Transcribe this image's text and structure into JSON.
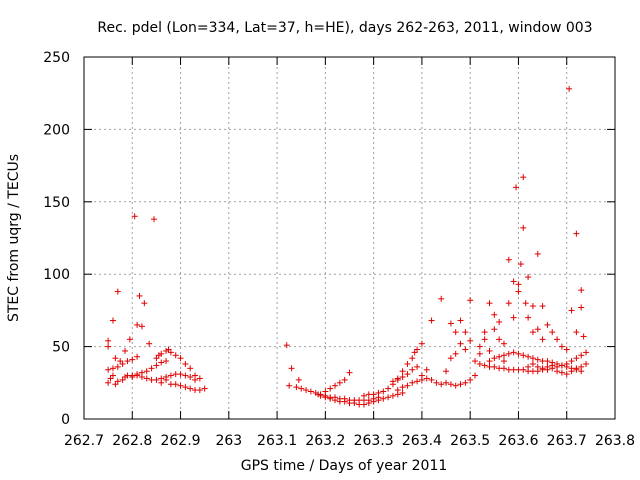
{
  "chart_data": {
    "type": "scatter",
    "title": "Rec. pdel (Lon=334, Lat=37, h=HE), days 262-263, 2011, window 003",
    "xlabel": "GPS time / Days of year 2011",
    "ylabel": "STEC from uqrg / TECUs",
    "xlim": [
      262.7,
      263.8
    ],
    "ylim": [
      0,
      250
    ],
    "xticks": [
      262.7,
      262.8,
      262.9,
      263,
      263.1,
      263.2,
      263.3,
      263.4,
      263.5,
      263.6,
      263.7,
      263.8
    ],
    "xtick_labels": [
      "262.7",
      "262.8",
      "262.9",
      "263",
      "263.1",
      "263.2",
      "263.3",
      "263.4",
      "263.5",
      "263.6",
      "263.7",
      "263.8"
    ],
    "yticks": [
      0,
      50,
      100,
      150,
      200,
      250
    ],
    "ytick_labels": [
      "0",
      "50",
      "100",
      "150",
      "200",
      "250"
    ],
    "grid": true,
    "marker": "plus",
    "marker_color": "#e00000",
    "points": [
      [
        262.75,
        25
      ],
      [
        262.755,
        28
      ],
      [
        262.76,
        30
      ],
      [
        262.765,
        24
      ],
      [
        262.77,
        26
      ],
      [
        262.78,
        27
      ],
      [
        262.785,
        29
      ],
      [
        262.79,
        30
      ],
      [
        262.75,
        34
      ],
      [
        262.76,
        35
      ],
      [
        262.77,
        36
      ],
      [
        262.78,
        38
      ],
      [
        262.79,
        40
      ],
      [
        262.8,
        41
      ],
      [
        262.81,
        43
      ],
      [
        262.75,
        50
      ],
      [
        262.75,
        54
      ],
      [
        262.76,
        68
      ],
      [
        262.765,
        42
      ],
      [
        262.77,
        88
      ],
      [
        262.775,
        40
      ],
      [
        262.785,
        47
      ],
      [
        262.795,
        55
      ],
      [
        262.805,
        140
      ],
      [
        262.81,
        65
      ],
      [
        262.815,
        85
      ],
      [
        262.82,
        64
      ],
      [
        262.825,
        80
      ],
      [
        262.835,
        52
      ],
      [
        262.845,
        138
      ],
      [
        262.85,
        42
      ],
      [
        262.855,
        44
      ],
      [
        262.86,
        45
      ],
      [
        262.87,
        47
      ],
      [
        262.875,
        48
      ],
      [
        262.88,
        46
      ],
      [
        262.89,
        44
      ],
      [
        262.9,
        42
      ],
      [
        262.91,
        38
      ],
      [
        262.92,
        35
      ],
      [
        262.93,
        30
      ],
      [
        262.94,
        28
      ],
      [
        262.8,
        30
      ],
      [
        262.81,
        31
      ],
      [
        262.82,
        32
      ],
      [
        262.83,
        33
      ],
      [
        262.84,
        35
      ],
      [
        262.85,
        37
      ],
      [
        262.86,
        39
      ],
      [
        262.87,
        40
      ],
      [
        262.8,
        29
      ],
      [
        262.81,
        30
      ],
      [
        262.82,
        29
      ],
      [
        262.83,
        28
      ],
      [
        262.84,
        27
      ],
      [
        262.85,
        27
      ],
      [
        262.86,
        28
      ],
      [
        262.87,
        29
      ],
      [
        262.88,
        30
      ],
      [
        262.89,
        31
      ],
      [
        262.9,
        31
      ],
      [
        262.91,
        30
      ],
      [
        262.92,
        29
      ],
      [
        262.93,
        27
      ],
      [
        262.86,
        25
      ],
      [
        262.87,
        27
      ],
      [
        262.88,
        24
      ],
      [
        262.89,
        24
      ],
      [
        262.9,
        23
      ],
      [
        262.91,
        22
      ],
      [
        262.92,
        21
      ],
      [
        262.93,
        20
      ],
      [
        262.94,
        20
      ],
      [
        262.95,
        21
      ],
      [
        263.12,
        51
      ],
      [
        263.125,
        23
      ],
      [
        263.13,
        35
      ],
      [
        263.14,
        22
      ],
      [
        263.145,
        27
      ],
      [
        263.15,
        21
      ],
      [
        263.16,
        20
      ],
      [
        263.17,
        19
      ],
      [
        263.18,
        18
      ],
      [
        263.185,
        17
      ],
      [
        263.19,
        16
      ],
      [
        263.2,
        15
      ],
      [
        263.21,
        14
      ],
      [
        263.22,
        13
      ],
      [
        263.23,
        12
      ],
      [
        263.24,
        12
      ],
      [
        263.25,
        11
      ],
      [
        263.26,
        11
      ],
      [
        263.27,
        10
      ],
      [
        263.28,
        10
      ],
      [
        263.29,
        11
      ],
      [
        263.3,
        12
      ],
      [
        263.31,
        13
      ],
      [
        263.32,
        14
      ],
      [
        263.33,
        15
      ],
      [
        263.34,
        16
      ],
      [
        263.35,
        17
      ],
      [
        263.36,
        18
      ],
      [
        263.2,
        19
      ],
      [
        263.21,
        21
      ],
      [
        263.22,
        23
      ],
      [
        263.23,
        25
      ],
      [
        263.24,
        27
      ],
      [
        263.25,
        32
      ],
      [
        263.19,
        17
      ],
      [
        263.2,
        16
      ],
      [
        263.21,
        15
      ],
      [
        263.22,
        15
      ],
      [
        263.23,
        14
      ],
      [
        263.24,
        14
      ],
      [
        263.25,
        13
      ],
      [
        263.26,
        13
      ],
      [
        263.27,
        13
      ],
      [
        263.28,
        13
      ],
      [
        263.29,
        13
      ],
      [
        263.3,
        14
      ],
      [
        263.31,
        15
      ],
      [
        263.28,
        16
      ],
      [
        263.29,
        17
      ],
      [
        263.3,
        17
      ],
      [
        263.31,
        18
      ],
      [
        263.32,
        19
      ],
      [
        263.33,
        21
      ],
      [
        263.34,
        24
      ],
      [
        263.35,
        28
      ],
      [
        263.36,
        33
      ],
      [
        263.37,
        38
      ],
      [
        263.38,
        42
      ],
      [
        263.385,
        46
      ],
      [
        263.39,
        48
      ],
      [
        263.4,
        52
      ],
      [
        263.34,
        26
      ],
      [
        263.35,
        27
      ],
      [
        263.36,
        29
      ],
      [
        263.37,
        31
      ],
      [
        263.38,
        34
      ],
      [
        263.39,
        36
      ],
      [
        263.35,
        20
      ],
      [
        263.36,
        22
      ],
      [
        263.37,
        23
      ],
      [
        263.38,
        25
      ],
      [
        263.39,
        26
      ],
      [
        263.4,
        27
      ],
      [
        263.41,
        28
      ],
      [
        263.42,
        27
      ],
      [
        263.43,
        25
      ],
      [
        263.44,
        24
      ],
      [
        263.45,
        25
      ],
      [
        263.46,
        24
      ],
      [
        263.47,
        23
      ],
      [
        263.48,
        24
      ],
      [
        263.49,
        25
      ],
      [
        263.5,
        27
      ],
      [
        263.51,
        30
      ],
      [
        263.4,
        30
      ],
      [
        263.41,
        34
      ],
      [
        263.42,
        68
      ],
      [
        263.44,
        83
      ],
      [
        263.45,
        33
      ],
      [
        263.46,
        42
      ],
      [
        263.46,
        66
      ],
      [
        263.47,
        45
      ],
      [
        263.47,
        60
      ],
      [
        263.48,
        52
      ],
      [
        263.48,
        68
      ],
      [
        263.49,
        60
      ],
      [
        263.49,
        48
      ],
      [
        263.5,
        82
      ],
      [
        263.5,
        54
      ],
      [
        263.51,
        40
      ],
      [
        263.52,
        45
      ],
      [
        263.52,
        50
      ],
      [
        263.53,
        55
      ],
      [
        263.53,
        60
      ],
      [
        263.54,
        80
      ],
      [
        263.54,
        47
      ],
      [
        263.55,
        62
      ],
      [
        263.55,
        72
      ],
      [
        263.56,
        67
      ],
      [
        263.56,
        55
      ],
      [
        263.57,
        52
      ],
      [
        263.57,
        40
      ],
      [
        263.58,
        110
      ],
      [
        263.58,
        80
      ],
      [
        263.59,
        70
      ],
      [
        263.59,
        95
      ],
      [
        263.595,
        160
      ],
      [
        263.6,
        93
      ],
      [
        263.6,
        88
      ],
      [
        263.605,
        107
      ],
      [
        263.61,
        167
      ],
      [
        263.61,
        132
      ],
      [
        263.615,
        80
      ],
      [
        263.62,
        98
      ],
      [
        263.62,
        70
      ],
      [
        263.63,
        78
      ],
      [
        263.63,
        60
      ],
      [
        263.64,
        114
      ],
      [
        263.64,
        62
      ],
      [
        263.65,
        78
      ],
      [
        263.65,
        55
      ],
      [
        263.66,
        65
      ],
      [
        263.67,
        60
      ],
      [
        263.68,
        55
      ],
      [
        263.69,
        50
      ],
      [
        263.7,
        48
      ],
      [
        263.705,
        228
      ],
      [
        263.71,
        75
      ],
      [
        263.72,
        128
      ],
      [
        263.72,
        60
      ],
      [
        263.73,
        89
      ],
      [
        263.73,
        77
      ],
      [
        263.735,
        57
      ],
      [
        263.54,
        40
      ],
      [
        263.55,
        42
      ],
      [
        263.56,
        43
      ],
      [
        263.57,
        44
      ],
      [
        263.58,
        45
      ],
      [
        263.59,
        46
      ],
      [
        263.6,
        45
      ],
      [
        263.61,
        44
      ],
      [
        263.62,
        43
      ],
      [
        263.63,
        42
      ],
      [
        263.64,
        41
      ],
      [
        263.65,
        40
      ],
      [
        263.66,
        40
      ],
      [
        263.67,
        39
      ],
      [
        263.68,
        38
      ],
      [
        263.69,
        37
      ],
      [
        263.7,
        36
      ],
      [
        263.71,
        35
      ],
      [
        263.72,
        34
      ],
      [
        263.73,
        33
      ],
      [
        263.52,
        38
      ],
      [
        263.53,
        37
      ],
      [
        263.54,
        36
      ],
      [
        263.55,
        36
      ],
      [
        263.56,
        35
      ],
      [
        263.57,
        35
      ],
      [
        263.58,
        34
      ],
      [
        263.59,
        34
      ],
      [
        263.6,
        34
      ],
      [
        263.61,
        34
      ],
      [
        263.62,
        33
      ],
      [
        263.63,
        33
      ],
      [
        263.64,
        33
      ],
      [
        263.65,
        34
      ],
      [
        263.66,
        34
      ],
      [
        263.67,
        35
      ],
      [
        263.68,
        36
      ],
      [
        263.69,
        37
      ],
      [
        263.7,
        38
      ],
      [
        263.71,
        40
      ],
      [
        263.72,
        42
      ],
      [
        263.73,
        44
      ],
      [
        263.74,
        46
      ],
      [
        263.62,
        36
      ],
      [
        263.63,
        38
      ],
      [
        263.64,
        36
      ],
      [
        263.65,
        35
      ],
      [
        263.66,
        36
      ],
      [
        263.67,
        37
      ],
      [
        263.68,
        33
      ],
      [
        263.69,
        32
      ],
      [
        263.7,
        31
      ],
      [
        263.71,
        33
      ],
      [
        263.72,
        35
      ],
      [
        263.73,
        36
      ],
      [
        263.74,
        38
      ]
    ]
  }
}
